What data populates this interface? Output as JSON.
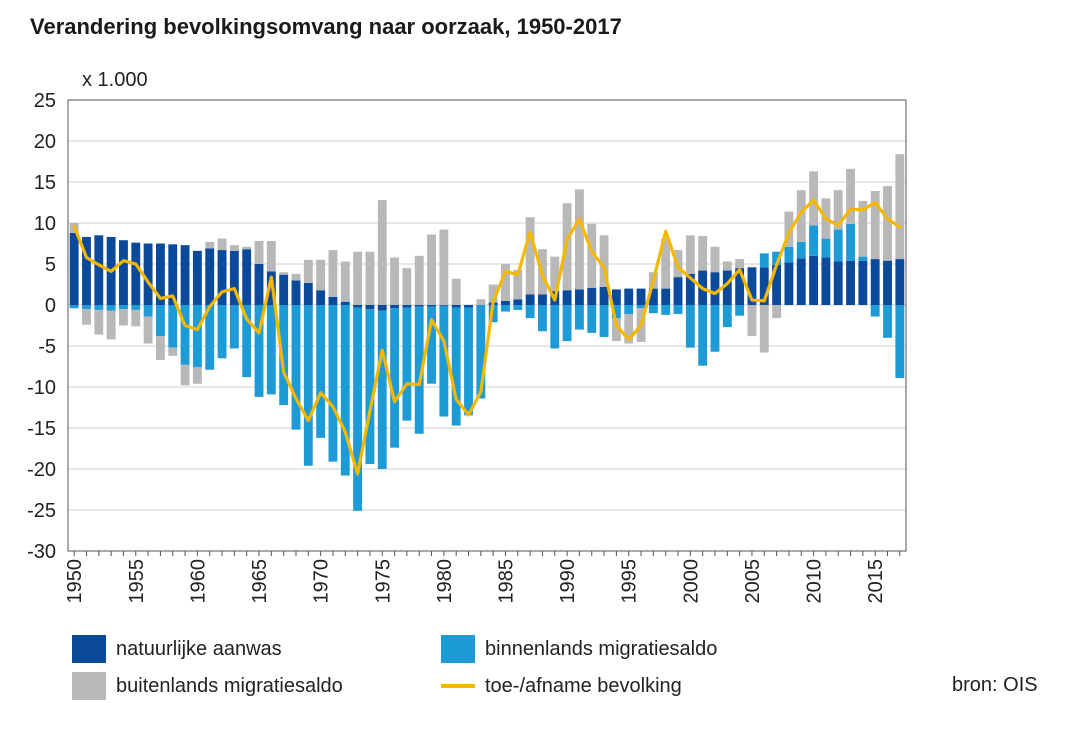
{
  "chart_data": {
    "type": "bar",
    "title": "Verandering bevolkingsomvang naar oorzaak, 1950-2017",
    "unit_label": "x 1.000",
    "ylim": [
      -30,
      25
    ],
    "y_ticks": [
      25,
      20,
      15,
      10,
      5,
      0,
      -5,
      -10,
      -15,
      -20,
      -25,
      -30
    ],
    "x_tick_labels": [
      "1950",
      "1955",
      "1960",
      "1965",
      "1970",
      "1975",
      "1980",
      "1985",
      "1990",
      "1995",
      "2000",
      "2005",
      "2010",
      "2015"
    ],
    "x": [
      1950,
      1951,
      1952,
      1953,
      1954,
      1955,
      1956,
      1957,
      1958,
      1959,
      1960,
      1961,
      1962,
      1963,
      1964,
      1965,
      1966,
      1967,
      1968,
      1969,
      1970,
      1971,
      1972,
      1973,
      1974,
      1975,
      1976,
      1977,
      1978,
      1979,
      1980,
      1981,
      1982,
      1983,
      1984,
      1985,
      1986,
      1987,
      1988,
      1989,
      1990,
      1991,
      1992,
      1993,
      1994,
      1995,
      1996,
      1997,
      1998,
      1999,
      2000,
      2001,
      2002,
      2003,
      2004,
      2005,
      2006,
      2007,
      2008,
      2009,
      2010,
      2011,
      2012,
      2013,
      2014,
      2015,
      2016,
      2017
    ],
    "series": [
      {
        "name": "natuurlijke aanwas",
        "color": "#0b4a9b",
        "values": [
          8.8,
          8.3,
          8.5,
          8.3,
          7.9,
          7.6,
          7.5,
          7.5,
          7.4,
          7.3,
          6.6,
          6.9,
          6.7,
          6.6,
          6.8,
          5.0,
          4.1,
          3.7,
          3.0,
          2.7,
          1.8,
          1.0,
          0.4,
          -0.3,
          -0.5,
          -0.7,
          -0.4,
          -0.3,
          -0.2,
          -0.2,
          -0.1,
          -0.3,
          -0.3,
          0.0,
          0.3,
          0.5,
          0.7,
          1.3,
          1.3,
          1.7,
          1.8,
          1.9,
          2.1,
          2.2,
          1.9,
          2.0,
          2.0,
          2.0,
          2.0,
          3.4,
          3.8,
          4.2,
          4.0,
          4.2,
          4.5,
          4.6,
          4.6,
          4.9,
          5.2,
          5.7,
          6.0,
          5.8,
          5.3,
          5.4,
          5.4,
          5.6,
          5.4,
          5.6
        ]
      },
      {
        "name": "binnenlands migratiesaldo",
        "color": "#1d9bd7",
        "values": [
          -0.4,
          -0.5,
          -0.6,
          -0.7,
          -0.5,
          -0.6,
          -1.4,
          -3.8,
          -5.2,
          -7.3,
          -7.6,
          -7.9,
          -6.5,
          -5.3,
          -8.8,
          -11.2,
          -10.9,
          -12.2,
          -15.2,
          -19.6,
          -16.2,
          -19.1,
          -20.8,
          -24.8,
          -18.9,
          -19.3,
          -17.0,
          -13.8,
          -15.5,
          -9.4,
          -13.5,
          -14.4,
          -13.1,
          -11.4,
          -2.1,
          -0.8,
          -0.6,
          -1.6,
          -3.2,
          -5.3,
          -4.4,
          -3.0,
          -3.4,
          -3.9,
          -1.6,
          -1.1,
          -0.4,
          -1.0,
          -1.2,
          -1.1,
          -5.2,
          -7.4,
          -5.7,
          -2.7,
          -1.3,
          0.0,
          1.7,
          1.6,
          1.9,
          2.0,
          3.7,
          2.3,
          3.9,
          4.5,
          0.5,
          -1.4,
          -4.0,
          -8.9
        ]
      },
      {
        "name": "buitenlands migratiesaldo",
        "color": "#b8b8b8",
        "values": [
          1.2,
          -1.9,
          -3.0,
          -3.5,
          -2.0,
          -2.0,
          -3.3,
          -2.9,
          -1.0,
          -2.5,
          -2.0,
          0.8,
          1.4,
          0.7,
          0.3,
          2.8,
          3.7,
          0.3,
          0.8,
          2.8,
          3.7,
          5.7,
          4.9,
          6.5,
          6.5,
          12.8,
          5.8,
          4.5,
          6.0,
          8.6,
          9.2,
          3.2,
          -0.1,
          0.7,
          2.2,
          4.5,
          3.6,
          9.4,
          5.5,
          4.2,
          10.6,
          12.2,
          7.8,
          6.3,
          -2.8,
          -3.6,
          -4.1,
          2.0,
          6.1,
          3.3,
          4.7,
          4.2,
          3.1,
          1.1,
          1.1,
          -3.8,
          -5.8,
          -1.6,
          4.3,
          6.3,
          6.6,
          4.9,
          4.8,
          6.7,
          6.8,
          8.3,
          9.1,
          12.8
        ]
      },
      {
        "name": "toe-/afname bevolking",
        "color": "#f5b800",
        "type": "line",
        "values": [
          9.6,
          5.8,
          4.9,
          4.1,
          5.4,
          5.0,
          2.8,
          0.8,
          1.1,
          -2.5,
          -3.0,
          -0.2,
          1.6,
          2.0,
          -1.7,
          -3.4,
          3.4,
          -8.2,
          -11.4,
          -14.1,
          -10.7,
          -12.4,
          -15.5,
          -20.6,
          -12.9,
          -5.5,
          -11.8,
          -9.6,
          -9.7,
          -1.8,
          -4.4,
          -11.5,
          -13.4,
          -10.6,
          0.4,
          4.1,
          3.7,
          8.9,
          3.6,
          0.6,
          8.0,
          10.5,
          6.5,
          4.6,
          -2.5,
          -4.2,
          -2.5,
          3.0,
          9.0,
          4.6,
          3.3,
          2.0,
          1.4,
          2.6,
          4.3,
          0.6,
          0.5,
          4.9,
          8.8,
          11.3,
          12.8,
          10.5,
          9.7,
          11.7,
          11.6,
          12.5,
          10.5,
          9.5
        ]
      }
    ],
    "legend": [
      {
        "label": "natuurlijke aanwas",
        "color": "#0b4a9b",
        "kind": "box"
      },
      {
        "label": "binnenlands migratiesaldo",
        "color": "#1d9bd7",
        "kind": "box"
      },
      {
        "label": "buitenlands migratiesaldo",
        "color": "#b8b8b8",
        "kind": "box"
      },
      {
        "label": "toe-/afname bevolking",
        "color": "#f5b800",
        "kind": "line"
      }
    ],
    "legend_placement": "bottom",
    "grid": true
  },
  "source": "bron: OIS"
}
